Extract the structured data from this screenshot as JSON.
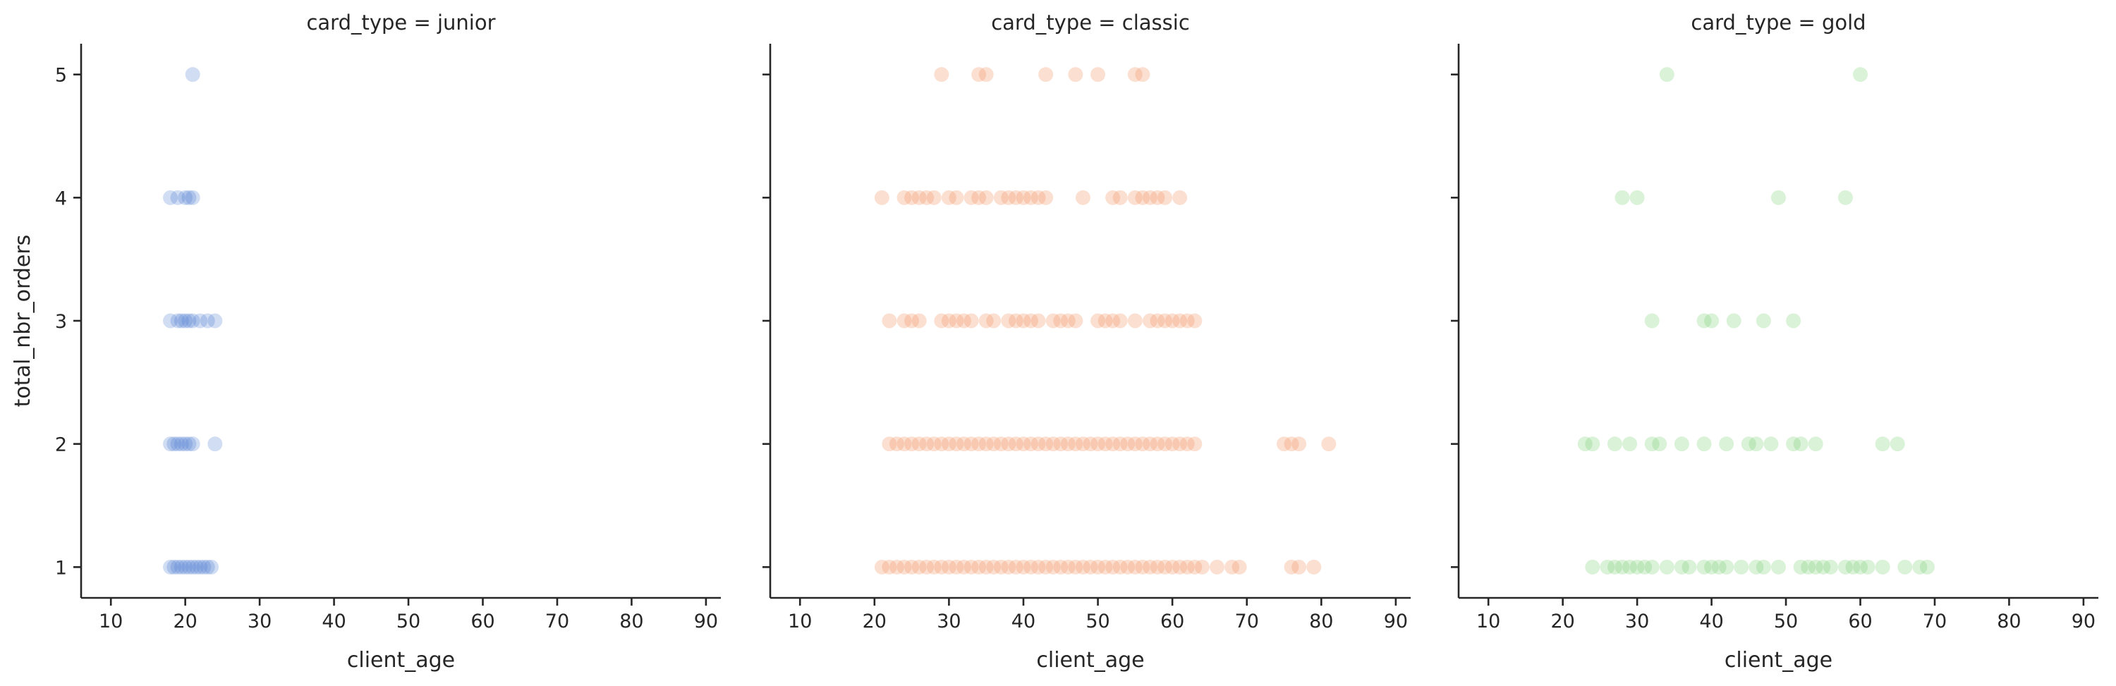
{
  "chart_data": {
    "type": "scatter",
    "facet_variable": "card_type",
    "xlabel": "client_age",
    "ylabel": "total_nbr_orders",
    "xlim": [
      6,
      92
    ],
    "ylim": [
      0.75,
      5.25
    ],
    "xticks": [
      "10",
      "20",
      "30",
      "40",
      "50",
      "60",
      "70",
      "80",
      "90"
    ],
    "yticks": [
      "1",
      "2",
      "3",
      "4",
      "5"
    ],
    "marker_alpha": 0.25,
    "grid": false,
    "panels": [
      {
        "title": "card_type = junior",
        "color": "#4878d0",
        "points": [
          [
            21,
            5
          ],
          [
            18,
            4
          ],
          [
            19,
            4
          ],
          [
            20,
            4
          ],
          [
            20.5,
            4
          ],
          [
            21,
            4
          ],
          [
            18,
            3
          ],
          [
            19,
            3
          ],
          [
            19.5,
            3
          ],
          [
            20,
            3
          ],
          [
            20.5,
            3
          ],
          [
            21,
            3
          ],
          [
            22,
            3
          ],
          [
            23,
            3
          ],
          [
            24,
            3
          ],
          [
            18,
            2
          ],
          [
            18.5,
            2
          ],
          [
            19,
            2
          ],
          [
            19.5,
            2
          ],
          [
            20,
            2
          ],
          [
            20.5,
            2
          ],
          [
            21,
            2
          ],
          [
            24,
            2
          ],
          [
            18,
            1
          ],
          [
            18.5,
            1
          ],
          [
            19,
            1
          ],
          [
            19.5,
            1
          ],
          [
            20,
            1
          ],
          [
            20.5,
            1
          ],
          [
            21,
            1
          ],
          [
            21.5,
            1
          ],
          [
            22,
            1
          ],
          [
            22.5,
            1
          ],
          [
            23,
            1
          ],
          [
            23.5,
            1
          ]
        ]
      },
      {
        "title": "card_type = classic",
        "color": "#ee854a",
        "points": [
          [
            29,
            5
          ],
          [
            34,
            5
          ],
          [
            35,
            5
          ],
          [
            43,
            5
          ],
          [
            47,
            5
          ],
          [
            50,
            5
          ],
          [
            55,
            5
          ],
          [
            56,
            5
          ],
          [
            21,
            4
          ],
          [
            24,
            4
          ],
          [
            25,
            4
          ],
          [
            26,
            4
          ],
          [
            27,
            4
          ],
          [
            28,
            4
          ],
          [
            30,
            4
          ],
          [
            31,
            4
          ],
          [
            33,
            4
          ],
          [
            34,
            4
          ],
          [
            35,
            4
          ],
          [
            37,
            4
          ],
          [
            38,
            4
          ],
          [
            39,
            4
          ],
          [
            40,
            4
          ],
          [
            41,
            4
          ],
          [
            42,
            4
          ],
          [
            43,
            4
          ],
          [
            48,
            4
          ],
          [
            52,
            4
          ],
          [
            53,
            4
          ],
          [
            55,
            4
          ],
          [
            56,
            4
          ],
          [
            57,
            4
          ],
          [
            58,
            4
          ],
          [
            59,
            4
          ],
          [
            61,
            4
          ],
          [
            22,
            3
          ],
          [
            24,
            3
          ],
          [
            25,
            3
          ],
          [
            26,
            3
          ],
          [
            29,
            3
          ],
          [
            30,
            3
          ],
          [
            31,
            3
          ],
          [
            32,
            3
          ],
          [
            33,
            3
          ],
          [
            35,
            3
          ],
          [
            36,
            3
          ],
          [
            38,
            3
          ],
          [
            39,
            3
          ],
          [
            40,
            3
          ],
          [
            41,
            3
          ],
          [
            42,
            3
          ],
          [
            44,
            3
          ],
          [
            45,
            3
          ],
          [
            46,
            3
          ],
          [
            47,
            3
          ],
          [
            50,
            3
          ],
          [
            51,
            3
          ],
          [
            52,
            3
          ],
          [
            53,
            3
          ],
          [
            55,
            3
          ],
          [
            57,
            3
          ],
          [
            58,
            3
          ],
          [
            59,
            3
          ],
          [
            60,
            3
          ],
          [
            61,
            3
          ],
          [
            62,
            3
          ],
          [
            63,
            3
          ],
          [
            22,
            2
          ],
          [
            23,
            2
          ],
          [
            24,
            2
          ],
          [
            25,
            2
          ],
          [
            26,
            2
          ],
          [
            27,
            2
          ],
          [
            28,
            2
          ],
          [
            29,
            2
          ],
          [
            30,
            2
          ],
          [
            31,
            2
          ],
          [
            32,
            2
          ],
          [
            33,
            2
          ],
          [
            34,
            2
          ],
          [
            35,
            2
          ],
          [
            36,
            2
          ],
          [
            37,
            2
          ],
          [
            38,
            2
          ],
          [
            39,
            2
          ],
          [
            40,
            2
          ],
          [
            41,
            2
          ],
          [
            42,
            2
          ],
          [
            43,
            2
          ],
          [
            44,
            2
          ],
          [
            45,
            2
          ],
          [
            46,
            2
          ],
          [
            47,
            2
          ],
          [
            48,
            2
          ],
          [
            49,
            2
          ],
          [
            50,
            2
          ],
          [
            51,
            2
          ],
          [
            52,
            2
          ],
          [
            53,
            2
          ],
          [
            54,
            2
          ],
          [
            55,
            2
          ],
          [
            56,
            2
          ],
          [
            57,
            2
          ],
          [
            58,
            2
          ],
          [
            59,
            2
          ],
          [
            60,
            2
          ],
          [
            61,
            2
          ],
          [
            62,
            2
          ],
          [
            63,
            2
          ],
          [
            75,
            2
          ],
          [
            76,
            2
          ],
          [
            77,
            2
          ],
          [
            81,
            2
          ],
          [
            21,
            1
          ],
          [
            22,
            1
          ],
          [
            23,
            1
          ],
          [
            24,
            1
          ],
          [
            25,
            1
          ],
          [
            26,
            1
          ],
          [
            27,
            1
          ],
          [
            28,
            1
          ],
          [
            29,
            1
          ],
          [
            30,
            1
          ],
          [
            31,
            1
          ],
          [
            32,
            1
          ],
          [
            33,
            1
          ],
          [
            34,
            1
          ],
          [
            35,
            1
          ],
          [
            36,
            1
          ],
          [
            37,
            1
          ],
          [
            38,
            1
          ],
          [
            39,
            1
          ],
          [
            40,
            1
          ],
          [
            41,
            1
          ],
          [
            42,
            1
          ],
          [
            43,
            1
          ],
          [
            44,
            1
          ],
          [
            45,
            1
          ],
          [
            46,
            1
          ],
          [
            47,
            1
          ],
          [
            48,
            1
          ],
          [
            49,
            1
          ],
          [
            50,
            1
          ],
          [
            51,
            1
          ],
          [
            52,
            1
          ],
          [
            53,
            1
          ],
          [
            54,
            1
          ],
          [
            55,
            1
          ],
          [
            56,
            1
          ],
          [
            57,
            1
          ],
          [
            58,
            1
          ],
          [
            59,
            1
          ],
          [
            60,
            1
          ],
          [
            61,
            1
          ],
          [
            62,
            1
          ],
          [
            63,
            1
          ],
          [
            64,
            1
          ],
          [
            66,
            1
          ],
          [
            68,
            1
          ],
          [
            69,
            1
          ],
          [
            76,
            1
          ],
          [
            77,
            1
          ],
          [
            79,
            1
          ]
        ]
      },
      {
        "title": "card_type = gold",
        "color": "#6acc64",
        "points": [
          [
            34,
            5
          ],
          [
            60,
            5
          ],
          [
            28,
            4
          ],
          [
            30,
            4
          ],
          [
            49,
            4
          ],
          [
            58,
            4
          ],
          [
            32,
            3
          ],
          [
            39,
            3
          ],
          [
            40,
            3
          ],
          [
            43,
            3
          ],
          [
            47,
            3
          ],
          [
            51,
            3
          ],
          [
            23,
            2
          ],
          [
            24,
            2
          ],
          [
            27,
            2
          ],
          [
            29,
            2
          ],
          [
            32,
            2
          ],
          [
            33,
            2
          ],
          [
            36,
            2
          ],
          [
            39,
            2
          ],
          [
            42,
            2
          ],
          [
            45,
            2
          ],
          [
            46,
            2
          ],
          [
            48,
            2
          ],
          [
            51,
            2
          ],
          [
            52,
            2
          ],
          [
            54,
            2
          ],
          [
            63,
            2
          ],
          [
            65,
            2
          ],
          [
            24,
            1
          ],
          [
            26,
            1
          ],
          [
            27,
            1
          ],
          [
            28,
            1
          ],
          [
            29,
            1
          ],
          [
            30,
            1
          ],
          [
            31,
            1
          ],
          [
            32,
            1
          ],
          [
            34,
            1
          ],
          [
            36,
            1
          ],
          [
            37,
            1
          ],
          [
            39,
            1
          ],
          [
            40,
            1
          ],
          [
            41,
            1
          ],
          [
            42,
            1
          ],
          [
            44,
            1
          ],
          [
            46,
            1
          ],
          [
            47,
            1
          ],
          [
            49,
            1
          ],
          [
            52,
            1
          ],
          [
            53,
            1
          ],
          [
            54,
            1
          ],
          [
            55,
            1
          ],
          [
            56,
            1
          ],
          [
            58,
            1
          ],
          [
            59,
            1
          ],
          [
            60,
            1
          ],
          [
            61,
            1
          ],
          [
            63,
            1
          ],
          [
            66,
            1
          ],
          [
            68,
            1
          ],
          [
            69,
            1
          ]
        ]
      }
    ]
  }
}
